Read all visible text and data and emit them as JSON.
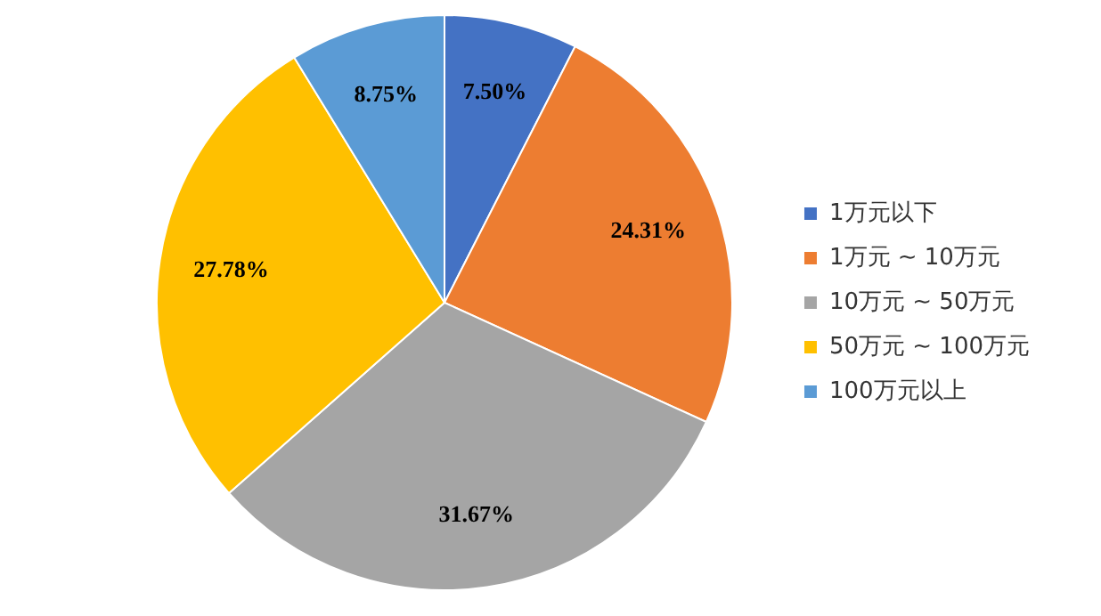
{
  "chart_data": {
    "type": "pie",
    "categories": [
      "1万元以下",
      "1万元 ~ 10万元",
      "10万元 ~ 50万元",
      "50万元 ~ 100万元",
      "100万元以上"
    ],
    "values": [
      7.5,
      24.31,
      31.67,
      27.78,
      8.75
    ],
    "colors": [
      "#4472c4",
      "#ed7d31",
      "#a5a5a5",
      "#ffc000",
      "#5b9bd5"
    ],
    "value_labels": [
      "7.50%",
      "24.31%",
      "31.67%",
      "27.78%",
      "8.75%"
    ],
    "legend": "right"
  }
}
